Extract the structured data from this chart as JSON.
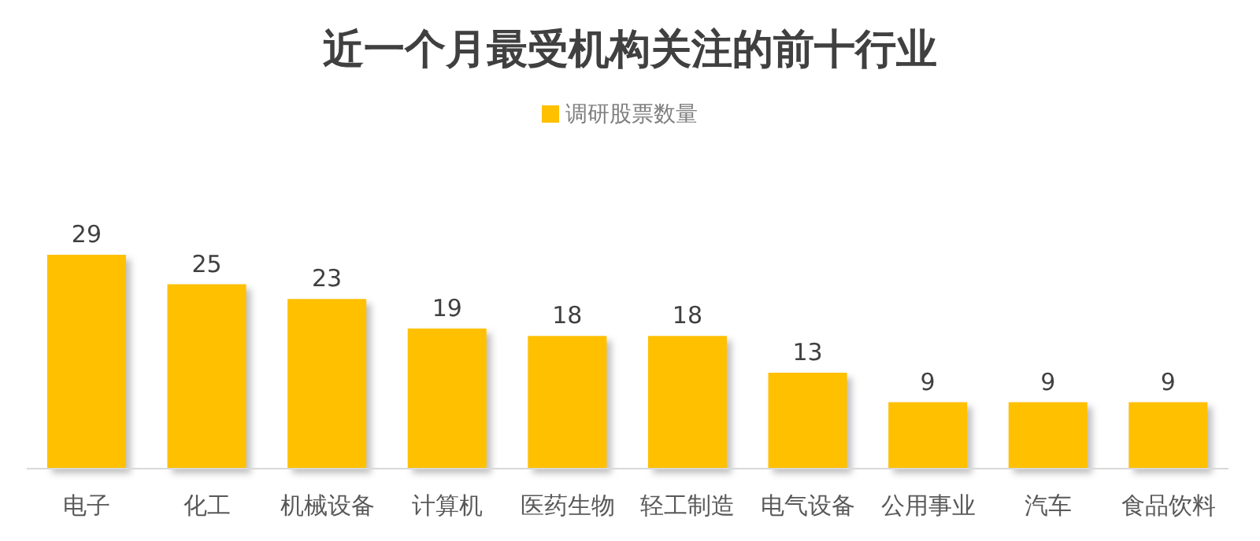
{
  "chart_data": {
    "type": "bar",
    "title": "近一个月最受机构关注的前十行业",
    "categories": [
      "电子",
      "化工",
      "机械设备",
      "计算机",
      "医药生物",
      "轻工制造",
      "电气设备",
      "公用事业",
      "汽车",
      "食品饮料"
    ],
    "series": [
      {
        "name": "调研股票数量",
        "color": "#ffc000",
        "values": [
          29,
          25,
          23,
          19,
          18,
          18,
          13,
          9,
          9,
          9
        ]
      }
    ],
    "tick_labels": "x",
    "data_labels": true,
    "legend": "top",
    "grid": false
  }
}
